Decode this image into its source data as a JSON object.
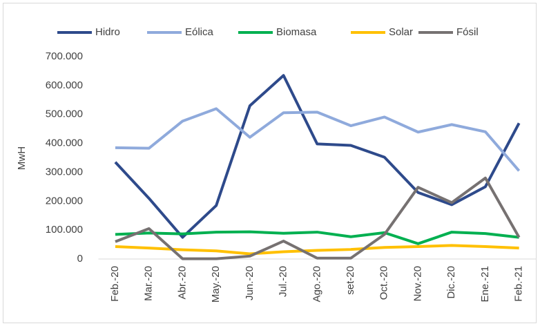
{
  "chart_data": {
    "type": "line",
    "ylabel": "MwH",
    "categories": [
      "Feb.-20",
      "Mar.-20",
      "Abr.-20",
      "May.-20",
      "Jun.-20",
      "Jul.-20",
      "Ago.-20",
      "set-20",
      "Oct.-20",
      "Nov.-20",
      "Dic.-20",
      "Ene.-21",
      "Feb.-21"
    ],
    "series": [
      {
        "name": "Hidro",
        "color": "#2e4a8b",
        "values": [
          335000,
          210000,
          75000,
          185000,
          530000,
          635000,
          398000,
          393000,
          352000,
          230000,
          188000,
          250000,
          470000
        ]
      },
      {
        "name": "Eólica",
        "color": "#8faadc",
        "values": [
          385000,
          383000,
          477000,
          520000,
          421000,
          506000,
          508000,
          461000,
          491000,
          439000,
          465000,
          440000,
          305000
        ]
      },
      {
        "name": "Biomasa",
        "color": "#00b050",
        "values": [
          85000,
          90000,
          87000,
          93000,
          94000,
          89000,
          93000,
          77000,
          91000,
          53000,
          93000,
          88000,
          75000
        ]
      },
      {
        "name": "Solar",
        "color": "#ffc000",
        "values": [
          43000,
          38000,
          32000,
          28000,
          18000,
          25000,
          30000,
          33000,
          40000,
          43000,
          47000,
          43000,
          38000
        ]
      },
      {
        "name": "Fósil",
        "color": "#767171",
        "values": [
          60000,
          105000,
          1000,
          1000,
          10000,
          62000,
          3000,
          3000,
          85000,
          248000,
          195000,
          280000,
          75000
        ]
      }
    ],
    "ylim": [
      0,
      700000
    ],
    "yticks": [
      0,
      {
        "value": 100000,
        "label": "100.000"
      },
      {
        "value": 200000,
        "label": "200.000"
      },
      {
        "value": 300000,
        "label": "300.000"
      },
      {
        "value": 400000,
        "label": "400.000"
      },
      {
        "value": 500000,
        "label": "500.000"
      },
      {
        "value": 600000,
        "label": "600.000"
      },
      {
        "value": 700000,
        "label": "700.000"
      }
    ],
    "grid": false,
    "legend": "top"
  }
}
